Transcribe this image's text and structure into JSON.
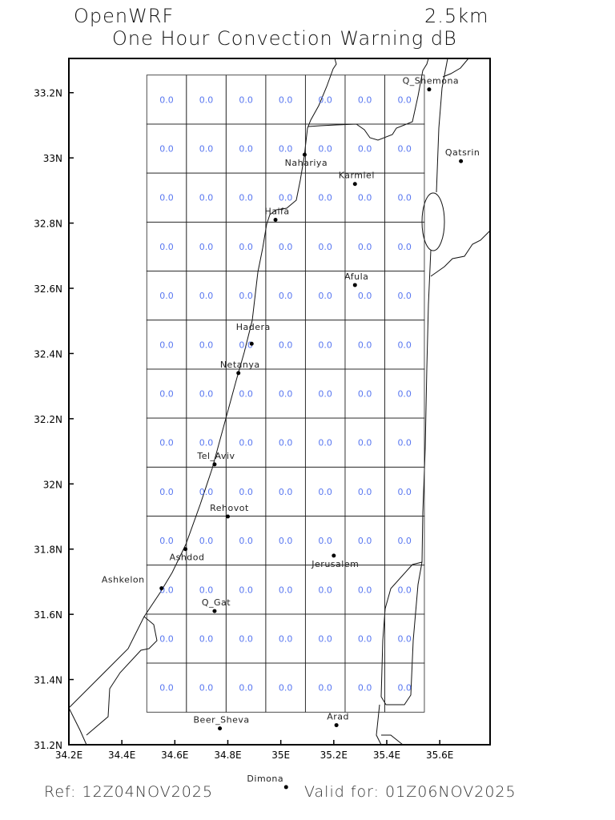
{
  "header": {
    "model": "OpenWRF",
    "resolution": "2.5km",
    "title": "One Hour Convection Warning dB"
  },
  "footer": {
    "ref": "Ref: 12Z04NOV2025",
    "valid": "Valid for: 01Z06NOV2025"
  },
  "map": {
    "lon_range": [
      34.2,
      35.79
    ],
    "lat_range": [
      31.2,
      33.305
    ],
    "x_ticks": [
      {
        "v": 34.2,
        "label": "34.2E"
      },
      {
        "v": 34.4,
        "label": "34.4E"
      },
      {
        "v": 34.6,
        "label": "34.6E"
      },
      {
        "v": 34.8,
        "label": "34.8E"
      },
      {
        "v": 35.0,
        "label": "35E"
      },
      {
        "v": 35.2,
        "label": "35.2E"
      },
      {
        "v": 35.4,
        "label": "35.4E"
      },
      {
        "v": 35.6,
        "label": "35.6E"
      }
    ],
    "y_ticks": [
      {
        "v": 31.2,
        "label": "31.2N"
      },
      {
        "v": 31.4,
        "label": "31.4N"
      },
      {
        "v": 31.6,
        "label": "31.6N"
      },
      {
        "v": 31.8,
        "label": "31.8N"
      },
      {
        "v": 32.0,
        "label": "32N"
      },
      {
        "v": 32.2,
        "label": "32.2N"
      },
      {
        "v": 32.4,
        "label": "32.4N"
      },
      {
        "v": 32.6,
        "label": "32.6N"
      },
      {
        "v": 32.8,
        "label": "32.8N"
      },
      {
        "v": 33.0,
        "label": "33N"
      },
      {
        "v": 33.2,
        "label": "33.2N"
      }
    ],
    "value_color": "#5a78f0",
    "grid": {
      "lon_edges": [
        34.494,
        35.542
      ],
      "lat_edges": [
        33.254,
        31.3
      ],
      "values": [
        [
          "0.0",
          "0.0",
          "0.0",
          "0.0",
          "0.0",
          "0.0",
          "0.0"
        ],
        [
          "0.0",
          "0.0",
          "0.0",
          "0.0",
          "0.0",
          "0.0",
          "0.0"
        ],
        [
          "0.0",
          "0.0",
          "0.0",
          "0.0",
          "0.0",
          "0.0",
          "0.0"
        ],
        [
          "0.0",
          "0.0",
          "0.0",
          "0.0",
          "0.0",
          "0.0",
          "0.0"
        ],
        [
          "0.0",
          "0.0",
          "0.0",
          "0.0",
          "0.0",
          "0.0",
          "0.0"
        ],
        [
          "0.0",
          "0.0",
          "0.0",
          "0.0",
          "0.0",
          "0.0",
          "0.0"
        ],
        [
          "0.0",
          "0.0",
          "0.0",
          "0.0",
          "0.0",
          "0.0",
          "0.0"
        ],
        [
          "0.0",
          "0.0",
          "0.0",
          "0.0",
          "0.0",
          "0.0",
          "0.0"
        ],
        [
          "0.0",
          "0.0",
          "0.0",
          "0.0",
          "0.0",
          "0.0",
          "0.0"
        ],
        [
          "0.0",
          "0.0",
          "0.0",
          "0.0",
          "0.0",
          "0.0",
          "0.0"
        ],
        [
          "0.0",
          "0.0",
          "0.0",
          "0.0",
          "0.0",
          "0.0",
          "0.0"
        ],
        [
          "0.0",
          "0.0",
          "0.0",
          "0.0",
          "0.0",
          "0.0",
          "0.0"
        ],
        [
          "0.0",
          "0.0",
          "0.0",
          "0.0",
          "0.0",
          "0.0",
          "0.0"
        ]
      ]
    },
    "cities": [
      {
        "name": "Q_Shemona",
        "lon": 35.56,
        "lat": 33.21
      },
      {
        "name": "Qatsrin",
        "lon": 35.68,
        "lat": 32.99
      },
      {
        "name": "Nahariya",
        "lon": 35.09,
        "lat": 33.01
      },
      {
        "name": "Karmiel",
        "lon": 35.28,
        "lat": 32.92
      },
      {
        "name": "Haifa",
        "lon": 34.98,
        "lat": 32.81
      },
      {
        "name": "Afula",
        "lon": 35.28,
        "lat": 32.61
      },
      {
        "name": "Hadera",
        "lon": 34.89,
        "lat": 32.43
      },
      {
        "name": "Netanya",
        "lon": 34.84,
        "lat": 32.34
      },
      {
        "name": "Tel_Aviv",
        "lon": 34.75,
        "lat": 32.06
      },
      {
        "name": "Rehovot",
        "lon": 34.8,
        "lat": 31.9
      },
      {
        "name": "Ashdod",
        "lon": 34.64,
        "lat": 31.8
      },
      {
        "name": "Jerusalem",
        "lon": 35.2,
        "lat": 31.78
      },
      {
        "name": "Ashkelon",
        "lon": 34.55,
        "lat": 31.68
      },
      {
        "name": "Q_Gat",
        "lon": 34.75,
        "lat": 31.61
      },
      {
        "name": "Beer_Sheva",
        "lon": 34.77,
        "lat": 31.25
      },
      {
        "name": "Arad",
        "lon": 35.21,
        "lat": 31.26
      },
      {
        "name": "Dimona",
        "lon": 35.02,
        "lat": 31.07
      }
    ]
  }
}
